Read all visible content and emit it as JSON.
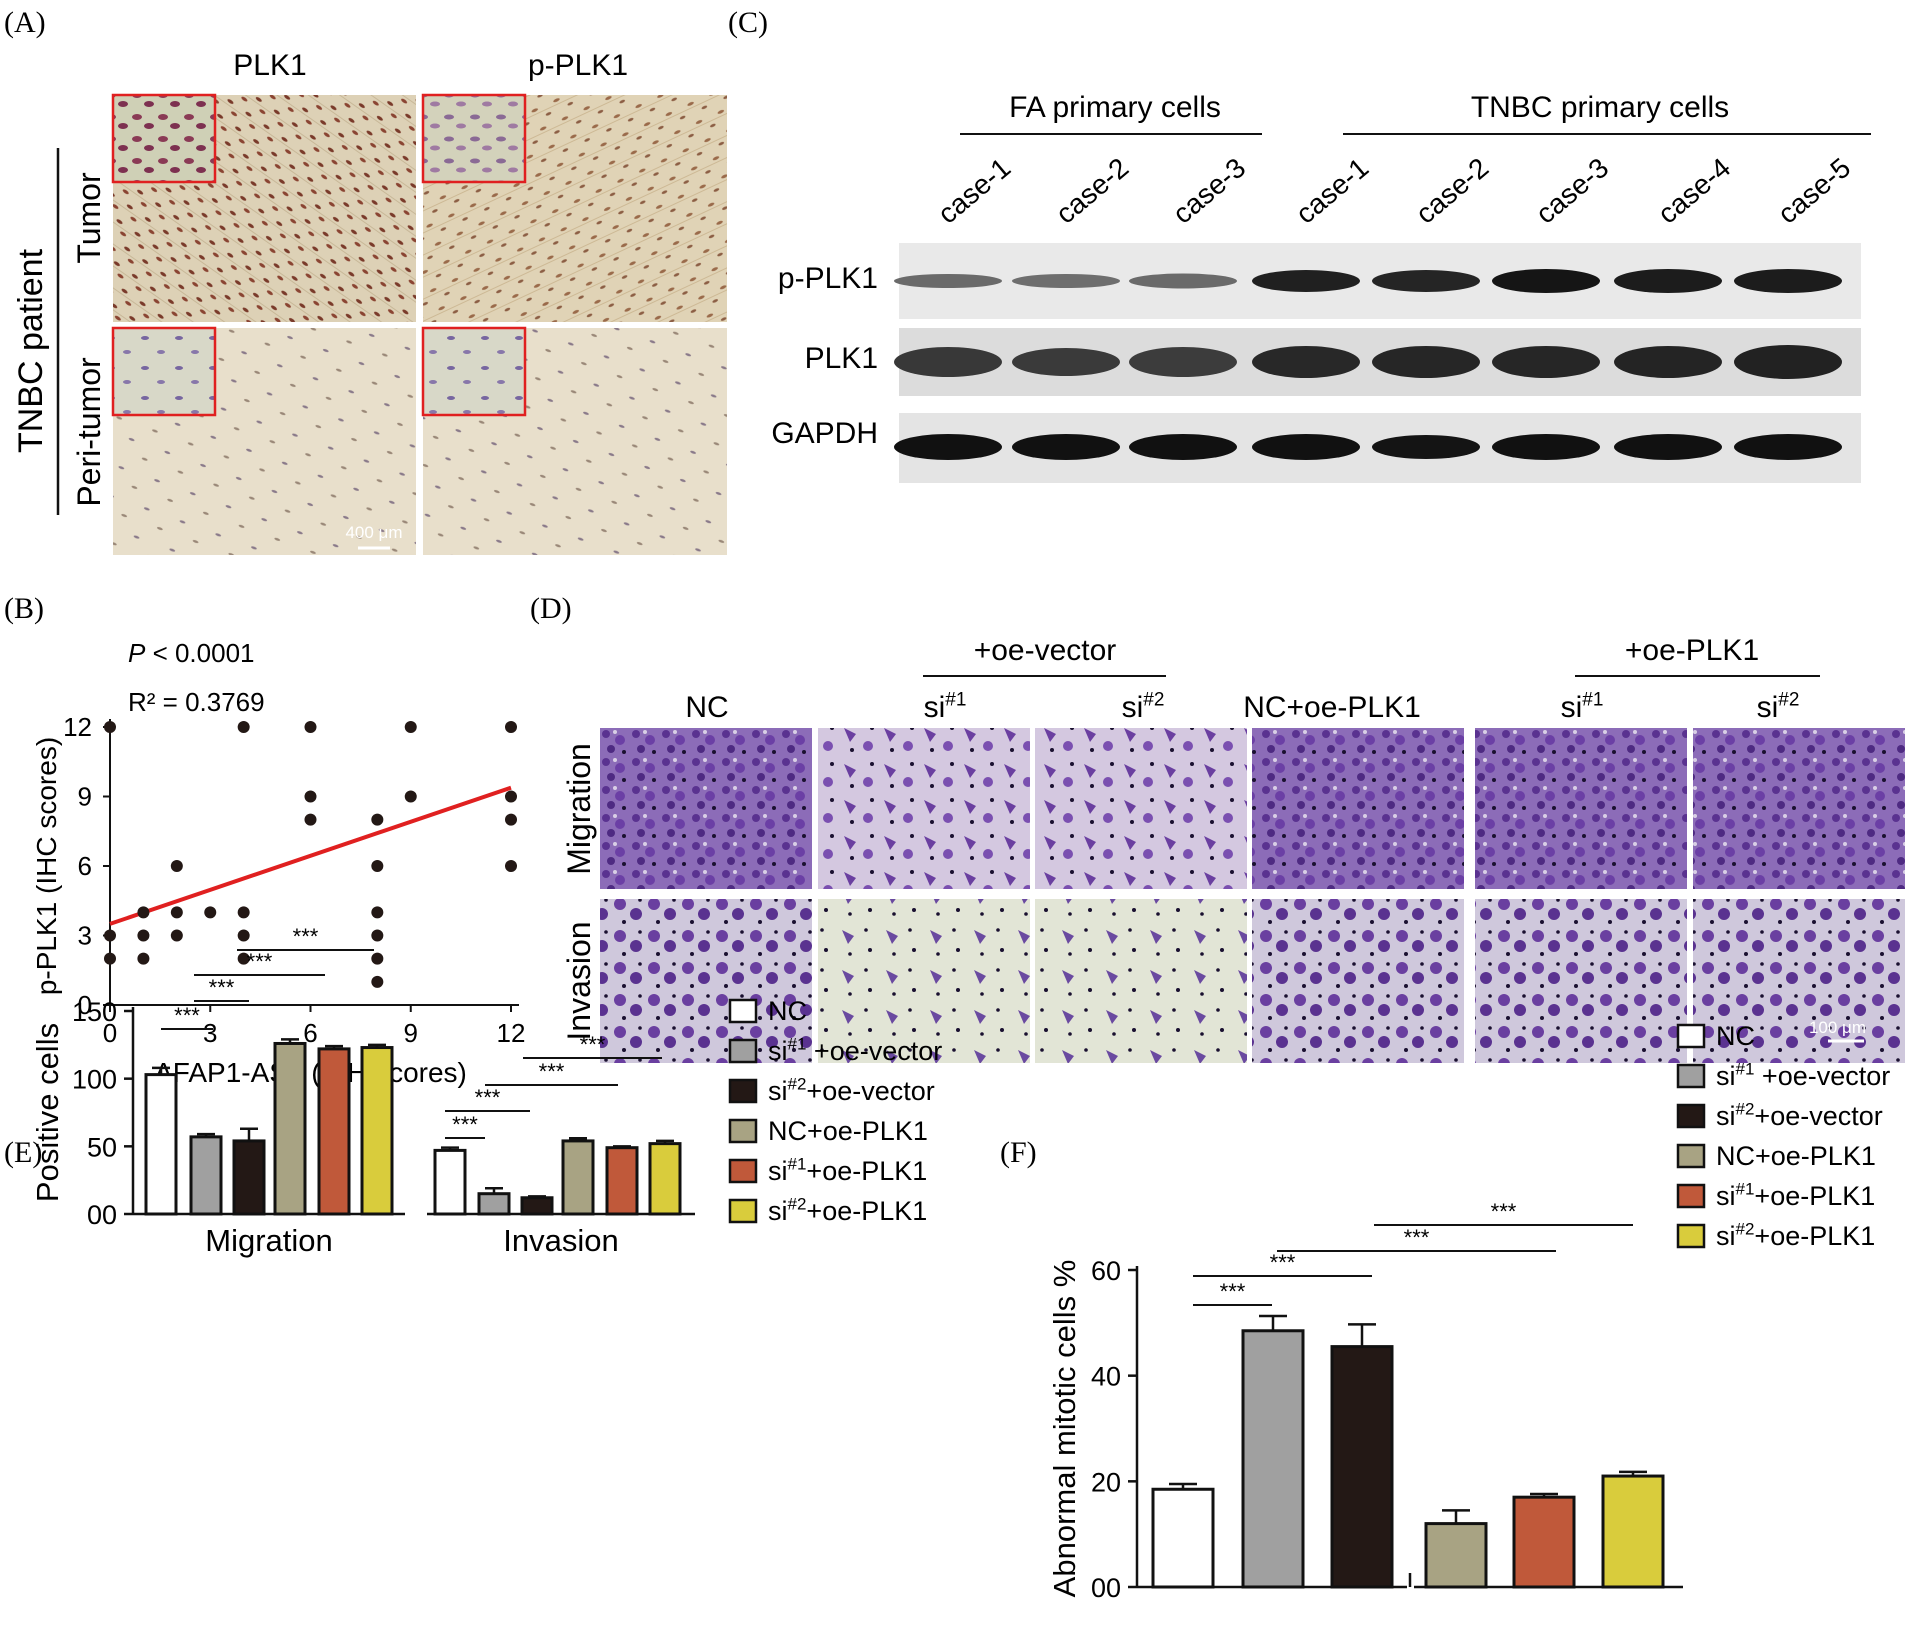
{
  "panel_labels": [
    "(A)",
    "(B)",
    "(C)",
    "(D)",
    "(E)",
    "(F)"
  ],
  "panelA": {
    "col_headers": [
      "PLK1",
      "p-PLK1"
    ],
    "group_label": "TNBC patient",
    "row_labels": [
      "Tumor",
      "Peri-tumor"
    ],
    "scale_bar": "400 μm",
    "colors": {
      "tissue": "#dcd0b4",
      "nuclei_tumor": "#7a3a2a",
      "inset_border": "#e02020"
    }
  },
  "panelC": {
    "groups": [
      "FA primary cells",
      "TNBC primary cells"
    ],
    "lanes": [
      "case-1",
      "case-2",
      "case-3",
      "case-1",
      "case-2",
      "case-3",
      "case-4",
      "case-5"
    ],
    "rows": [
      "p-PLK1",
      "PLK1",
      "GAPDH"
    ]
  },
  "panelD": {
    "group_headers": [
      "+oe-vector",
      "+oe-PLK1"
    ],
    "col_labels": [
      "NC",
      "si#1",
      "si#2",
      "NC+oe-PLK1",
      "si#1",
      "si#2"
    ],
    "row_labels": [
      "Migration",
      "Invasion"
    ],
    "scale_bar": "100 μm",
    "colors": {
      "stain": "#6a3fa0",
      "background_mig": "#c9bcd8",
      "background_inv": "#dfe3d0"
    }
  },
  "legend": [
    "NC",
    "si#1 +oe-vector",
    "si#2+oe-vector",
    "NC+oe-PLK1",
    "si#1+oe-PLK1",
    "si#2+oe-PLK1"
  ],
  "series_colors": [
    "#ffffff",
    "#a0a0a0",
    "#231815",
    "#a8a383",
    "#c0593a",
    "#d9cc3c"
  ],
  "sig_label": "***",
  "chart_data": [
    {
      "id": "B",
      "type": "scatter",
      "title": "",
      "xlabel": "AFAP1-AS1 (ISH scores)",
      "ylabel": "p-PLK1 (IHC scores)",
      "xlim": [
        0,
        12
      ],
      "ylim": [
        0,
        12
      ],
      "xticks": [
        "0",
        "3",
        "6",
        "9",
        "12"
      ],
      "yticks": [
        "0",
        "3",
        "6",
        "9",
        "12"
      ],
      "annotations": [
        "P < 0.0001",
        "R² = 0.3769"
      ],
      "points": [
        [
          0,
          12
        ],
        [
          0,
          3
        ],
        [
          0,
          2
        ],
        [
          1,
          4
        ],
        [
          1,
          3
        ],
        [
          1,
          2
        ],
        [
          2,
          6
        ],
        [
          2,
          4
        ],
        [
          2,
          3
        ],
        [
          3,
          4
        ],
        [
          4,
          12
        ],
        [
          4,
          4
        ],
        [
          4,
          3
        ],
        [
          4,
          2
        ],
        [
          6,
          12
        ],
        [
          6,
          9
        ],
        [
          6,
          8
        ],
        [
          8,
          8
        ],
        [
          8,
          6
        ],
        [
          8,
          4
        ],
        [
          8,
          3
        ],
        [
          8,
          2
        ],
        [
          8,
          1
        ],
        [
          9,
          12
        ],
        [
          9,
          9
        ],
        [
          12,
          12
        ],
        [
          12,
          9
        ],
        [
          12,
          8
        ],
        [
          12,
          6
        ]
      ],
      "fit_line": {
        "intercept": 3.5,
        "slope": 0.49,
        "color": "#e02020"
      }
    },
    {
      "id": "E",
      "type": "bar",
      "title": "",
      "xlabel": "",
      "ylabel": "Positive cells",
      "ylim": [
        0,
        150
      ],
      "yticks": [
        "00",
        "50",
        "100",
        "150"
      ],
      "categories": [
        "Migration",
        "Invasion"
      ],
      "series": [
        {
          "name": "NC",
          "values": [
            103,
            47
          ],
          "errors": [
            5,
            2
          ]
        },
        {
          "name": "si#1 +oe-vector",
          "values": [
            57,
            15
          ],
          "errors": [
            2,
            4
          ]
        },
        {
          "name": "si#2+oe-vector",
          "values": [
            54,
            12
          ],
          "errors": [
            9,
            1
          ]
        },
        {
          "name": "NC+oe-PLK1",
          "values": [
            126,
            54
          ],
          "errors": [
            3,
            2
          ]
        },
        {
          "name": "si#1+oe-PLK1",
          "values": [
            122,
            49
          ],
          "errors": [
            2,
            1
          ]
        },
        {
          "name": "si#2+oe-PLK1",
          "values": [
            123,
            52
          ],
          "errors": [
            2,
            2
          ]
        }
      ],
      "comparisons": [
        [
          0,
          0,
          0,
          1
        ],
        [
          0,
          0,
          0,
          2
        ],
        [
          0,
          1,
          0,
          4
        ],
        [
          0,
          2,
          0,
          5
        ],
        [
          1,
          0,
          1,
          1
        ],
        [
          1,
          0,
          1,
          2
        ],
        [
          1,
          1,
          1,
          4
        ],
        [
          1,
          2,
          1,
          5
        ]
      ]
    },
    {
      "id": "F",
      "type": "bar",
      "title": "",
      "xlabel": "",
      "ylabel": "Abnormal mitotic cells %",
      "ylim": [
        0,
        60
      ],
      "yticks": [
        "00",
        "20",
        "40",
        "60"
      ],
      "categories": [
        ""
      ],
      "series": [
        {
          "name": "NC",
          "values": [
            18.5
          ],
          "errors": [
            1
          ]
        },
        {
          "name": "si#1 +oe-vector",
          "values": [
            48.5
          ],
          "errors": [
            2.8
          ]
        },
        {
          "name": "si#2+oe-vector",
          "values": [
            45.5
          ],
          "errors": [
            4.2
          ]
        },
        {
          "name": "NC+oe-PLK1",
          "values": [
            12
          ],
          "errors": [
            2.5
          ]
        },
        {
          "name": "si#1+oe-PLK1",
          "values": [
            17
          ],
          "errors": [
            0.6
          ]
        },
        {
          "name": "si#2+oe-PLK1",
          "values": [
            21
          ],
          "errors": [
            0.8
          ]
        }
      ],
      "comparisons": [
        [
          0,
          1
        ],
        [
          0,
          2
        ],
        [
          1,
          4
        ],
        [
          2,
          5
        ]
      ]
    }
  ]
}
